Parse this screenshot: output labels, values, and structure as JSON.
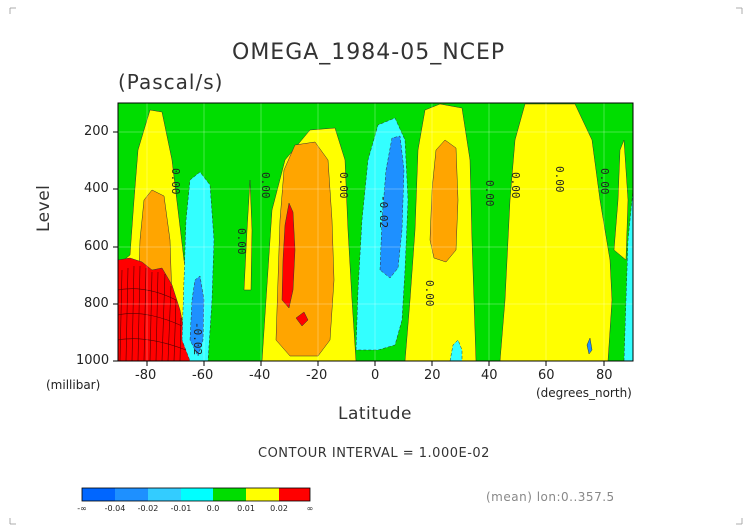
{
  "chart_data": {
    "type": "heatmap",
    "title": "OMEGA_1984-05_NCEP",
    "subtitle": "(Pascal/s)",
    "xlabel": "Latitude",
    "x_units": "(degrees_north)",
    "ylabel": "Level",
    "y_units": "(millibar)",
    "xlim": [
      -90,
      90
    ],
    "ylim": [
      1000,
      100
    ],
    "x_ticks": [
      -80,
      -60,
      -40,
      -20,
      0,
      20,
      40,
      60,
      80
    ],
    "y_ticks": [
      1000,
      800,
      600,
      400,
      200
    ],
    "contour_interval_text": "CONTOUR INTERVAL = 1.000E-02",
    "mean_note": "(mean) lon:0..357.5",
    "contour_labels": [
      "0.00",
      "-0.02"
    ],
    "colorbar": {
      "labels": [
        "-∞",
        "-0.04",
        "-0.02",
        "-0.01",
        "0.0",
        "0.01",
        "0.02",
        "∞"
      ],
      "colors": [
        "#0066ff",
        "#1e90ff",
        "#33ccff",
        "#00ffff",
        "#00dd00",
        "#ffff00",
        "#ffa500",
        "#ff0000"
      ]
    }
  }
}
